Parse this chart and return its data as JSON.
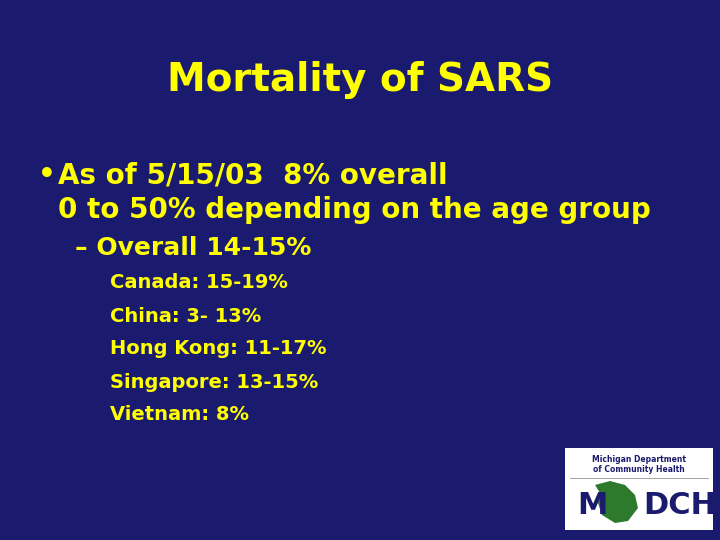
{
  "title": "Mortality of SARS",
  "background_color": "#1a1a6e",
  "title_color": "#ffff00",
  "text_color": "#ffff00",
  "title_fontsize": 28,
  "bullet_fontsize": 20,
  "sub_bullet_fontsize": 18,
  "detail_fontsize": 14,
  "bullet_text": "As of 5/15/03  8% overall",
  "bullet_text2": "0 to 50% depending on the age group",
  "sub_bullet": "– Overall 14-15%",
  "details": [
    "Canada: 15-19%",
    "China: 3- 13%",
    "Hong Kong: 11-17%",
    "Singapore: 13-15%",
    "Vietnam: 8%"
  ]
}
